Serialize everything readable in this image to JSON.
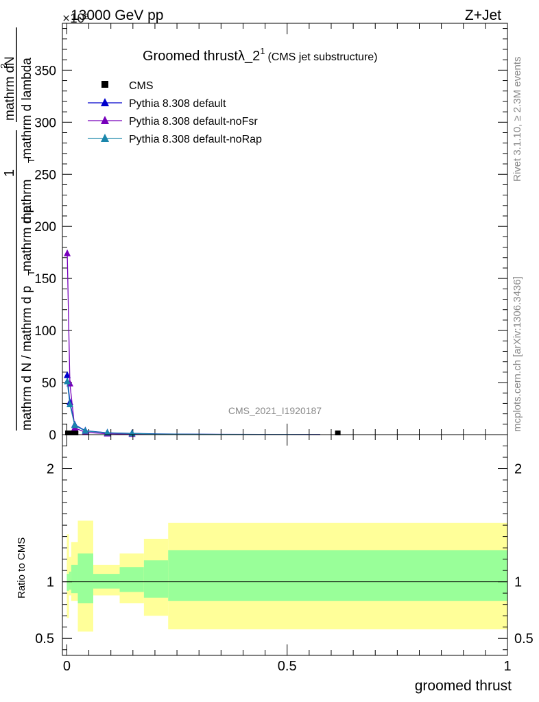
{
  "header": {
    "energy": "13000 GeV pp",
    "process": "Z+Jet",
    "exponent": "×10³"
  },
  "side": {
    "rivet": "Rivet 3.1.10, ≥ 2.3M events",
    "source": "mcplots.cern.ch [arXiv:1306.3436]"
  },
  "chart_data": [
    {
      "type": "line",
      "title_main": "Groomed thrust",
      "title_sub": "(CMS jet substructure)",
      "ylabel": "1/(mathrm d N / mathrm d p_T) mathrm d²N/(mathrm d p_T mathrm d lambda)",
      "ylabel_lines": [
        "mathrm d N / mathrm d p",
        "T",
        "mathrm d p",
        "mathrm d lambda",
        "mathrm d",
        "N",
        "2"
      ],
      "watermark": "CMS_2021_I1920187",
      "xlim": [
        -0.01,
        1.0
      ],
      "ylim": [
        0,
        395000
      ],
      "y_ticks": [
        0,
        50,
        100,
        150,
        200,
        250,
        300,
        350
      ],
      "x_ticks": [
        "0",
        "0.5",
        "1"
      ],
      "legend": [
        "CMS",
        "Pythia 8.308 default",
        "Pythia 8.308 default-noFsr",
        "Pythia 8.308 default-noRap"
      ],
      "series": [
        {
          "name": "CMS",
          "color": "#000000",
          "marker": "square",
          "x": [
            0.0025,
            0.0075,
            0.0125,
            0.02,
            0.615
          ],
          "y": [
            0,
            0,
            0,
            0,
            0
          ]
        },
        {
          "name": "Pythia 8.308 default",
          "color": "#0000cc",
          "marker": "triangle",
          "x": [
            0.001,
            0.007,
            0.018,
            0.042,
            0.092,
            0.148,
            0.205,
            0.35,
            0.5,
            0.575
          ],
          "y": [
            57000,
            31000,
            9500,
            3800,
            1800,
            1200,
            700,
            300,
            150,
            80
          ]
        },
        {
          "name": "Pythia 8.308 default-noFsr",
          "color": "#7700bb",
          "marker": "triangle",
          "x": [
            0.001,
            0.007,
            0.018,
            0.042,
            0.092,
            0.148,
            0.205,
            0.35,
            0.5,
            0.575
          ],
          "y": [
            174000,
            49000,
            6500,
            2200,
            900,
            500,
            300,
            150,
            80,
            40
          ]
        },
        {
          "name": "Pythia 8.308 default-noRap",
          "color": "#1a86ab",
          "marker": "triangle",
          "x": [
            0.001,
            0.007,
            0.018,
            0.042,
            0.092,
            0.148,
            0.205,
            0.35,
            0.5,
            0.575
          ],
          "y": [
            51000,
            29000,
            9000,
            3500,
            1700,
            1100,
            600,
            250,
            120,
            60
          ]
        }
      ]
    },
    {
      "type": "area",
      "ylabel": "Ratio to CMS",
      "xlabel": "groomed thrust",
      "xlim": [
        -0.01,
        1.0
      ],
      "ylim": [
        0.35,
        2.3
      ],
      "y_ticks": [
        "0.5",
        "1",
        "2"
      ],
      "x_ticks": [
        "0",
        "0.5",
        "1"
      ],
      "reference": 1,
      "bins": [
        {
          "x0": 0.0,
          "x1": 0.005,
          "y_lo": 0.68,
          "y_hi": 1.42,
          "g_lo": 0.92,
          "g_hi": 1.07
        },
        {
          "x0": 0.005,
          "x1": 0.01,
          "y_lo": 0.88,
          "y_hi": 1.22,
          "g_lo": 0.93,
          "g_hi": 1.09
        },
        {
          "x0": 0.01,
          "x1": 0.025,
          "y_lo": 0.83,
          "y_hi": 1.35,
          "g_lo": 0.9,
          "g_hi": 1.15
        },
        {
          "x0": 0.025,
          "x1": 0.06,
          "y_lo": 0.56,
          "y_hi": 1.54,
          "g_lo": 0.81,
          "g_hi": 1.25
        },
        {
          "x0": 0.06,
          "x1": 0.12,
          "y_lo": 0.88,
          "y_hi": 1.15,
          "g_lo": 0.94,
          "g_hi": 1.07
        },
        {
          "x0": 0.12,
          "x1": 0.175,
          "y_lo": 0.81,
          "y_hi": 1.25,
          "g_lo": 0.91,
          "g_hi": 1.13
        },
        {
          "x0": 0.175,
          "x1": 0.23,
          "y_lo": 0.7,
          "y_hi": 1.38,
          "g_lo": 0.86,
          "g_hi": 1.19
        },
        {
          "x0": 0.23,
          "x1": 1.0,
          "y_lo": 0.58,
          "y_hi": 1.52,
          "g_lo": 0.83,
          "g_hi": 1.28
        }
      ],
      "colors": {
        "outer": "#ffff99",
        "inner": "#99ff99"
      }
    }
  ]
}
